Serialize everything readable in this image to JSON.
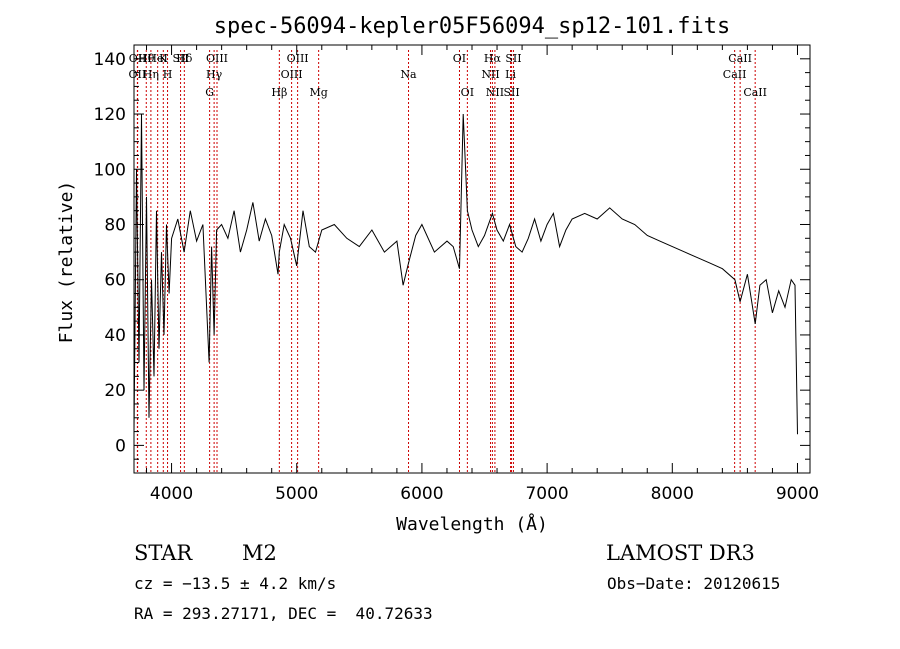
{
  "chart_data": {
    "type": "line",
    "title": "spec-56094-kepler05F56094_sp12-101.fits",
    "xlabel": "Wavelength (Å)",
    "ylabel": "Flux (relative)",
    "xlim": [
      3700,
      9100
    ],
    "ylim": [
      -10,
      145
    ],
    "xticks": [
      4000,
      5000,
      6000,
      7000,
      8000,
      9000
    ],
    "yticks": [
      0,
      20,
      40,
      60,
      80,
      100,
      120,
      140
    ],
    "series": [
      {
        "name": "flux",
        "x": [
          3700,
          3720,
          3740,
          3760,
          3780,
          3800,
          3820,
          3840,
          3860,
          3880,
          3900,
          3920,
          3940,
          3960,
          3980,
          4000,
          4050,
          4100,
          4150,
          4200,
          4250,
          4300,
          4320,
          4340,
          4360,
          4400,
          4450,
          4500,
          4550,
          4600,
          4650,
          4700,
          4750,
          4800,
          4850,
          4861,
          4900,
          4950,
          5000,
          5050,
          5100,
          5150,
          5200,
          5300,
          5400,
          5500,
          5600,
          5700,
          5800,
          5850,
          5893,
          5950,
          6000,
          6100,
          6200,
          6250,
          6300,
          6330,
          6363,
          6400,
          6450,
          6500,
          6563,
          6600,
          6650,
          6700,
          6750,
          6800,
          6850,
          6900,
          6950,
          7000,
          7050,
          7100,
          7150,
          7200,
          7300,
          7400,
          7500,
          7600,
          7700,
          7800,
          7900,
          8000,
          8100,
          8200,
          8300,
          8400,
          8500,
          8542,
          8600,
          8662,
          8700,
          8750,
          8800,
          8850,
          8900,
          8950,
          8980,
          9000
        ],
        "y": [
          5,
          100,
          30,
          120,
          20,
          90,
          10,
          60,
          25,
          85,
          35,
          70,
          40,
          80,
          55,
          75,
          82,
          70,
          85,
          74,
          80,
          30,
          72,
          40,
          78,
          80,
          75,
          85,
          70,
          78,
          88,
          74,
          82,
          76,
          62,
          70,
          80,
          75,
          65,
          85,
          72,
          70,
          78,
          80,
          75,
          72,
          78,
          70,
          74,
          58,
          66,
          76,
          80,
          70,
          74,
          72,
          64,
          120,
          85,
          78,
          72,
          76,
          84,
          78,
          74,
          80,
          72,
          70,
          75,
          82,
          74,
          80,
          84,
          72,
          78,
          82,
          84,
          82,
          86,
          82,
          80,
          76,
          74,
          72,
          70,
          68,
          66,
          64,
          60,
          52,
          62,
          44,
          58,
          60,
          48,
          56,
          50,
          60,
          58,
          4
        ]
      }
    ],
    "lines": [
      {
        "label": "OII",
        "wave": 3727,
        "row": 1
      },
      {
        "label": "OII",
        "wave": 3729,
        "row": 0
      },
      {
        "label": "Hθ",
        "wave": 3798,
        "row": 0
      },
      {
        "label": "Hη",
        "wave": 3835,
        "row": 1
      },
      {
        "label": "K",
        "wave": 3934,
        "row": 0
      },
      {
        "label": "H",
        "wave": 3968,
        "row": 1
      },
      {
        "label": "HeI",
        "wave": 3889,
        "row": 0
      },
      {
        "label": "SII",
        "wave": 4072,
        "row": 0
      },
      {
        "label": "Hδ",
        "wave": 4102,
        "row": 0
      },
      {
        "label": "OIII",
        "wave": 4363,
        "row": 0
      },
      {
        "label": "Hγ",
        "wave": 4340,
        "row": 1
      },
      {
        "label": "G",
        "wave": 4304,
        "row": 2
      },
      {
        "label": "Hβ",
        "wave": 4861,
        "row": 2
      },
      {
        "label": "OIII",
        "wave": 4959,
        "row": 1
      },
      {
        "label": "OIII",
        "wave": 5007,
        "row": 0
      },
      {
        "label": "Mg",
        "wave": 5175,
        "row": 2
      },
      {
        "label": "Na",
        "wave": 5893,
        "row": 1
      },
      {
        "label": "OI",
        "wave": 6300,
        "row": 0
      },
      {
        "label": "OI",
        "wave": 6363,
        "row": 2
      },
      {
        "label": "NII",
        "wave": 6548,
        "row": 1
      },
      {
        "label": "Hα",
        "wave": 6563,
        "row": 0
      },
      {
        "label": "NII",
        "wave": 6583,
        "row": 2
      },
      {
        "label": "SII",
        "wave": 6716,
        "row": 2
      },
      {
        "label": "Li",
        "wave": 6708,
        "row": 1
      },
      {
        "label": "SII",
        "wave": 6731,
        "row": 0
      },
      {
        "label": "CaII",
        "wave": 8498,
        "row": 1
      },
      {
        "label": "CaII",
        "wave": 8542,
        "row": 0
      },
      {
        "label": "CaII",
        "wave": 8662,
        "row": 2
      }
    ]
  },
  "info": {
    "object_class": "STAR",
    "subclass": "M2",
    "survey": "LAMOST DR3",
    "cz": "cz = −13.5 ± 4.2 km/s",
    "obs_date": "Obs−Date: 20120615",
    "coords": "RA = 293.27171, DEC =  40.72633"
  },
  "colors": {
    "spectrum": "#000000",
    "line_marker": "#cc0000",
    "axes": "#000000"
  }
}
